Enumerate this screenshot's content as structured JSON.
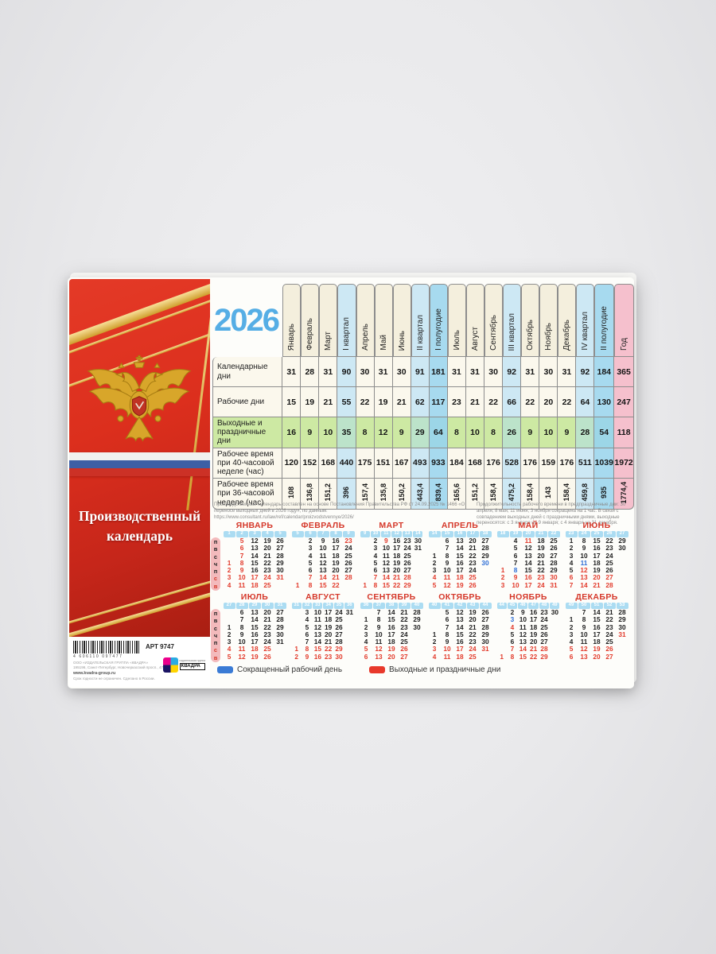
{
  "year": "2026",
  "panel": {
    "title_line1": "Производственный",
    "title_line2": "календарь"
  },
  "pub": {
    "barcode_number": "4 606110 097477",
    "art": "АРТ 9747",
    "publisher": "ООО «ИЗДАТЕЛЬСКАЯ ГРУППА «КВАДРА»",
    "address": "195196, Санкт-Петербург, Новочеркасский просп., 47",
    "site": "www.kvadra-group.ru",
    "note": "Срок годности не ограничен. Сделано в России.",
    "logo_small": "издательская группа",
    "logo_text": "КВАДРА"
  },
  "footnotes": {
    "left": "Производственный календарь составлен на основе Постановления Правительства РФ от 24.09.2025 № 1466 «О переносе выходных дней в 2026 году», по данным: https://www.consultant.ru/law/ref/calendar/proizvodstvennye/2026/",
    "right": "Продолжительность рабочего времени в предпраздничные дни: 30 апреля, 8 мая, 11 июня, 3 ноября сокращена на 1 час. В связи с совпадением выходных дней с праздничными днями, выходные переносятся: с 3 января на 9 января; с 4 января на 31 декабря."
  },
  "table": {
    "columns": [
      {
        "label": "Январь",
        "type": "month"
      },
      {
        "label": "Февраль",
        "type": "month"
      },
      {
        "label": "Март",
        "type": "month"
      },
      {
        "label": "I квартал",
        "type": "quarter"
      },
      {
        "label": "Апрель",
        "type": "month"
      },
      {
        "label": "Май",
        "type": "month"
      },
      {
        "label": "Июнь",
        "type": "month"
      },
      {
        "label": "II квартал",
        "type": "quarter"
      },
      {
        "label": "I полугодие",
        "type": "half"
      },
      {
        "label": "Июль",
        "type": "month"
      },
      {
        "label": "Август",
        "type": "month"
      },
      {
        "label": "Сентябрь",
        "type": "month"
      },
      {
        "label": "III квартал",
        "type": "quarter"
      },
      {
        "label": "Октябрь",
        "type": "month"
      },
      {
        "label": "Ноябрь",
        "type": "month"
      },
      {
        "label": "Декабрь",
        "type": "month"
      },
      {
        "label": "IV квартал",
        "type": "quarter"
      },
      {
        "label": "II полугодие",
        "type": "half"
      },
      {
        "label": "Год",
        "type": "year"
      }
    ],
    "rows": [
      {
        "label": "Календарные дни",
        "values": [
          "31",
          "28",
          "31",
          "90",
          "30",
          "31",
          "30",
          "91",
          "181",
          "31",
          "31",
          "30",
          "92",
          "31",
          "30",
          "31",
          "92",
          "184",
          "365"
        ]
      },
      {
        "label": "Рабочие дни",
        "values": [
          "15",
          "19",
          "21",
          "55",
          "22",
          "19",
          "21",
          "62",
          "117",
          "23",
          "21",
          "22",
          "66",
          "22",
          "20",
          "22",
          "64",
          "130",
          "247"
        ]
      },
      {
        "label": "Выходные и праздничные дни",
        "green": true,
        "values": [
          "16",
          "9",
          "10",
          "35",
          "8",
          "12",
          "9",
          "29",
          "64",
          "8",
          "10",
          "8",
          "26",
          "9",
          "10",
          "9",
          "28",
          "54",
          "118"
        ]
      },
      {
        "label": "Рабочее время при 40-часовой неделе (час)",
        "values": [
          "120",
          "152",
          "168",
          "440",
          "175",
          "151",
          "167",
          "493",
          "933",
          "184",
          "168",
          "176",
          "528",
          "176",
          "159",
          "176",
          "511",
          "1039",
          "1972"
        ]
      },
      {
        "label": "Рабочее время при 36-часовой неделе (час)",
        "rotated": true,
        "values": [
          "108",
          "136,8",
          "151,2",
          "396",
          "157,4",
          "135,8",
          "150,2",
          "443,4",
          "839,4",
          "165,6",
          "151,2",
          "158,4",
          "475,2",
          "158,4",
          "143",
          "158,4",
          "459,8",
          "935",
          "1774,4"
        ]
      }
    ]
  },
  "weekdays": [
    "п",
    "в",
    "с",
    "ч",
    "п",
    "с",
    "в"
  ],
  "months": [
    {
      "name": "ЯНВАРЬ",
      "weeks": [
        "1",
        "2",
        "3",
        "4",
        "5"
      ],
      "days": [
        [
          "",
          "5",
          "12",
          "19",
          "26"
        ],
        [
          "",
          "6",
          "13",
          "20",
          "27"
        ],
        [
          "",
          "7",
          "14",
          "21",
          "28"
        ],
        [
          "1",
          "8",
          "15",
          "22",
          "29"
        ],
        [
          "2",
          "9",
          "16",
          "23",
          "30"
        ],
        [
          "3",
          "10",
          "17",
          "24",
          "31"
        ],
        [
          "4",
          "11",
          "18",
          "25",
          ""
        ]
      ],
      "red": [
        1,
        2,
        3,
        4,
        5,
        6,
        7,
        8,
        9,
        10,
        11,
        17,
        18,
        24,
        25,
        31
      ],
      "blue": []
    },
    {
      "name": "ФЕВРАЛЬ",
      "weeks": [
        "5",
        "6",
        "7",
        "8",
        "9"
      ],
      "days": [
        [
          "",
          "2",
          "9",
          "16",
          "23"
        ],
        [
          "",
          "3",
          "10",
          "17",
          "24"
        ],
        [
          "",
          "4",
          "11",
          "18",
          "25"
        ],
        [
          "",
          "5",
          "12",
          "19",
          "26"
        ],
        [
          "",
          "6",
          "13",
          "20",
          "27"
        ],
        [
          "",
          "7",
          "14",
          "21",
          "28"
        ],
        [
          "1",
          "8",
          "15",
          "22",
          ""
        ]
      ],
      "red": [
        1,
        7,
        8,
        14,
        15,
        21,
        22,
        23,
        28
      ],
      "blue": []
    },
    {
      "name": "МАРТ",
      "weeks": [
        "9",
        "10",
        "11",
        "12",
        "13",
        "14"
      ],
      "days": [
        [
          "",
          "2",
          "9",
          "16",
          "23",
          "30"
        ],
        [
          "",
          "3",
          "10",
          "17",
          "24",
          "31"
        ],
        [
          "",
          "4",
          "11",
          "18",
          "25",
          ""
        ],
        [
          "",
          "5",
          "12",
          "19",
          "26",
          ""
        ],
        [
          "",
          "6",
          "13",
          "20",
          "27",
          ""
        ],
        [
          "",
          "7",
          "14",
          "21",
          "28",
          ""
        ],
        [
          "1",
          "8",
          "15",
          "22",
          "29",
          ""
        ]
      ],
      "red": [
        1,
        7,
        8,
        9,
        14,
        15,
        21,
        22,
        28,
        29
      ],
      "blue": []
    },
    {
      "name": "АПРЕЛЬ",
      "weeks": [
        "14",
        "15",
        "16",
        "17",
        "18"
      ],
      "days": [
        [
          "",
          "6",
          "13",
          "20",
          "27"
        ],
        [
          "",
          "7",
          "14",
          "21",
          "28"
        ],
        [
          "1",
          "8",
          "15",
          "22",
          "29"
        ],
        [
          "2",
          "9",
          "16",
          "23",
          "30"
        ],
        [
          "3",
          "10",
          "17",
          "24",
          ""
        ],
        [
          "4",
          "11",
          "18",
          "25",
          ""
        ],
        [
          "5",
          "12",
          "19",
          "26",
          ""
        ]
      ],
      "red": [
        4,
        5,
        11,
        12,
        18,
        19,
        25,
        26
      ],
      "blue": [
        30
      ]
    },
    {
      "name": "МАЙ",
      "weeks": [
        "18",
        "19",
        "20",
        "21",
        "22"
      ],
      "days": [
        [
          "",
          "4",
          "11",
          "18",
          "25"
        ],
        [
          "",
          "5",
          "12",
          "19",
          "26"
        ],
        [
          "",
          "6",
          "13",
          "20",
          "27"
        ],
        [
          "",
          "7",
          "14",
          "21",
          "28"
        ],
        [
          "1",
          "8",
          "15",
          "22",
          "29"
        ],
        [
          "2",
          "9",
          "16",
          "23",
          "30"
        ],
        [
          "3",
          "10",
          "17",
          "24",
          "31"
        ]
      ],
      "red": [
        1,
        2,
        3,
        9,
        10,
        11,
        16,
        17,
        23,
        24,
        30,
        31
      ],
      "blue": [
        8
      ]
    },
    {
      "name": "ИЮНЬ",
      "weeks": [
        "23",
        "24",
        "25",
        "26",
        "27"
      ],
      "days": [
        [
          "1",
          "8",
          "15",
          "22",
          "29"
        ],
        [
          "2",
          "9",
          "16",
          "23",
          "30"
        ],
        [
          "3",
          "10",
          "17",
          "24",
          ""
        ],
        [
          "4",
          "11",
          "18",
          "25",
          ""
        ],
        [
          "5",
          "12",
          "19",
          "26",
          ""
        ],
        [
          "6",
          "13",
          "20",
          "27",
          ""
        ],
        [
          "7",
          "14",
          "21",
          "28",
          ""
        ]
      ],
      "red": [
        6,
        7,
        12,
        13,
        14,
        20,
        21,
        27,
        28
      ],
      "blue": [
        11
      ]
    },
    {
      "name": "ИЮЛЬ",
      "weeks": [
        "27",
        "28",
        "29",
        "30",
        "31"
      ],
      "days": [
        [
          "",
          "6",
          "13",
          "20",
          "27"
        ],
        [
          "",
          "7",
          "14",
          "21",
          "28"
        ],
        [
          "1",
          "8",
          "15",
          "22",
          "29"
        ],
        [
          "2",
          "9",
          "16",
          "23",
          "30"
        ],
        [
          "3",
          "10",
          "17",
          "24",
          "31"
        ],
        [
          "4",
          "11",
          "18",
          "25",
          ""
        ],
        [
          "5",
          "12",
          "19",
          "26",
          ""
        ]
      ],
      "red": [
        4,
        5,
        11,
        12,
        18,
        19,
        25,
        26
      ],
      "blue": []
    },
    {
      "name": "АВГУСТ",
      "weeks": [
        "31",
        "32",
        "33",
        "34",
        "35",
        "36"
      ],
      "days": [
        [
          "",
          "3",
          "10",
          "17",
          "24",
          "31"
        ],
        [
          "",
          "4",
          "11",
          "18",
          "25",
          ""
        ],
        [
          "",
          "5",
          "12",
          "19",
          "26",
          ""
        ],
        [
          "",
          "6",
          "13",
          "20",
          "27",
          ""
        ],
        [
          "",
          "7",
          "14",
          "21",
          "28",
          ""
        ],
        [
          "1",
          "8",
          "15",
          "22",
          "29",
          ""
        ],
        [
          "2",
          "9",
          "16",
          "23",
          "30",
          ""
        ]
      ],
      "red": [
        1,
        2,
        8,
        9,
        15,
        16,
        22,
        23,
        29,
        30
      ],
      "blue": []
    },
    {
      "name": "СЕНТЯБРЬ",
      "weeks": [
        "36",
        "37",
        "38",
        "39",
        "40"
      ],
      "days": [
        [
          "",
          "7",
          "14",
          "21",
          "28"
        ],
        [
          "1",
          "8",
          "15",
          "22",
          "29"
        ],
        [
          "2",
          "9",
          "16",
          "23",
          "30"
        ],
        [
          "3",
          "10",
          "17",
          "24",
          ""
        ],
        [
          "4",
          "11",
          "18",
          "25",
          ""
        ],
        [
          "5",
          "12",
          "19",
          "26",
          ""
        ],
        [
          "6",
          "13",
          "20",
          "27",
          ""
        ]
      ],
      "red": [
        5,
        6,
        12,
        13,
        19,
        20,
        26,
        27
      ],
      "blue": []
    },
    {
      "name": "ОКТЯБРЬ",
      "weeks": [
        "40",
        "41",
        "42",
        "43",
        "44"
      ],
      "days": [
        [
          "",
          "5",
          "12",
          "19",
          "26"
        ],
        [
          "",
          "6",
          "13",
          "20",
          "27"
        ],
        [
          "",
          "7",
          "14",
          "21",
          "28"
        ],
        [
          "1",
          "8",
          "15",
          "22",
          "29"
        ],
        [
          "2",
          "9",
          "16",
          "23",
          "30"
        ],
        [
          "3",
          "10",
          "17",
          "24",
          "31"
        ],
        [
          "4",
          "11",
          "18",
          "25",
          ""
        ]
      ],
      "red": [
        3,
        4,
        10,
        11,
        17,
        18,
        24,
        25,
        31
      ],
      "blue": []
    },
    {
      "name": "НОЯБРЬ",
      "weeks": [
        "44",
        "45",
        "46",
        "47",
        "48",
        "49"
      ],
      "days": [
        [
          "",
          "2",
          "9",
          "16",
          "23",
          "30"
        ],
        [
          "",
          "3",
          "10",
          "17",
          "24",
          ""
        ],
        [
          "",
          "4",
          "11",
          "18",
          "25",
          ""
        ],
        [
          "",
          "5",
          "12",
          "19",
          "26",
          ""
        ],
        [
          "",
          "6",
          "13",
          "20",
          "27",
          ""
        ],
        [
          "",
          "7",
          "14",
          "21",
          "28",
          ""
        ],
        [
          "1",
          "8",
          "15",
          "22",
          "29",
          ""
        ]
      ],
      "red": [
        1,
        4,
        7,
        8,
        14,
        15,
        21,
        22,
        28,
        29
      ],
      "blue": [
        3
      ]
    },
    {
      "name": "ДЕКАБРЬ",
      "weeks": [
        "49",
        "50",
        "51",
        "52",
        "53"
      ],
      "days": [
        [
          "",
          "7",
          "14",
          "21",
          "28"
        ],
        [
          "1",
          "8",
          "15",
          "22",
          "29"
        ],
        [
          "2",
          "9",
          "16",
          "23",
          "30"
        ],
        [
          "3",
          "10",
          "17",
          "24",
          "31"
        ],
        [
          "4",
          "11",
          "18",
          "25",
          ""
        ],
        [
          "5",
          "12",
          "19",
          "26",
          ""
        ],
        [
          "6",
          "13",
          "20",
          "27",
          ""
        ]
      ],
      "red": [
        5,
        6,
        12,
        13,
        19,
        20,
        26,
        27,
        31
      ],
      "blue": []
    }
  ],
  "legend": [
    {
      "color": "#3a7bd5",
      "label": "Сокращенный рабочий день"
    },
    {
      "color": "#e8392b",
      "label": "Выходные и праздничные дни"
    }
  ]
}
